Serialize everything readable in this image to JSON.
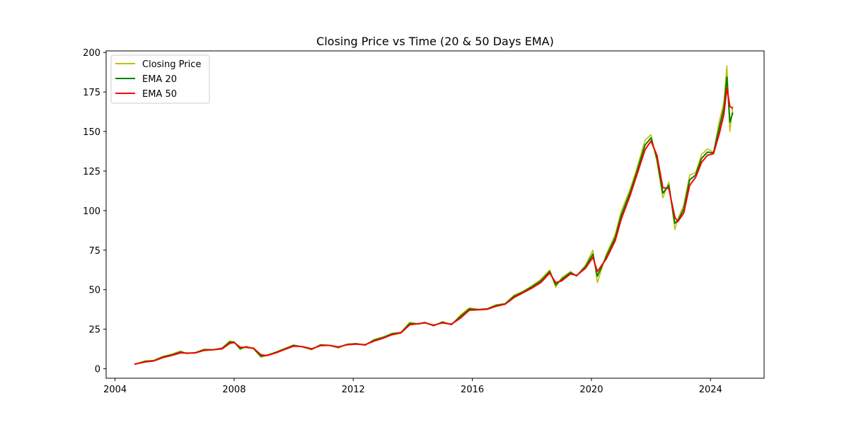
{
  "chart_data": {
    "type": "line",
    "title": "Closing Price vs Time (20 & 50 Days EMA)",
    "xlabel": "",
    "ylabel": "",
    "xlim": [
      2003.7,
      2025.8
    ],
    "ylim": [
      -6,
      201
    ],
    "x_ticks": [
      2004,
      2008,
      2012,
      2016,
      2020,
      2024
    ],
    "x_tick_labels": [
      "2004",
      "2008",
      "2012",
      "2016",
      "2020",
      "2024"
    ],
    "y_ticks": [
      0,
      25,
      50,
      75,
      100,
      125,
      150,
      175,
      200
    ],
    "y_tick_labels": [
      "0",
      "25",
      "50",
      "75",
      "100",
      "125",
      "150",
      "175",
      "200"
    ],
    "grid": false,
    "legend_position": "upper-left",
    "series": [
      {
        "name": "Closing Price",
        "color": "#bfbf00",
        "x": [
          2004.65,
          2005.0,
          2005.3,
          2005.6,
          2005.9,
          2006.2,
          2006.4,
          2006.7,
          2007.0,
          2007.3,
          2007.6,
          2007.85,
          2008.0,
          2008.2,
          2008.4,
          2008.65,
          2008.9,
          2009.1,
          2009.4,
          2009.7,
          2010.0,
          2010.3,
          2010.6,
          2010.9,
          2011.2,
          2011.5,
          2011.8,
          2012.1,
          2012.4,
          2012.7,
          2013.0,
          2013.3,
          2013.6,
          2013.9,
          2014.2,
          2014.4,
          2014.7,
          2015.0,
          2015.3,
          2015.6,
          2015.9,
          2016.2,
          2016.5,
          2016.8,
          2017.1,
          2017.4,
          2017.7,
          2018.0,
          2018.3,
          2018.6,
          2018.8,
          2019.0,
          2019.3,
          2019.5,
          2019.8,
          2020.05,
          2020.2,
          2020.5,
          2020.8,
          2021.0,
          2021.3,
          2021.5,
          2021.8,
          2022.0,
          2022.2,
          2022.4,
          2022.6,
          2022.8,
          2022.9,
          2023.1,
          2023.3,
          2023.5,
          2023.7,
          2023.9,
          2024.1,
          2024.3,
          2024.45,
          2024.55,
          2024.65,
          2024.75
        ],
        "y": [
          2.8,
          4.9,
          5.3,
          7.8,
          9.2,
          11.2,
          9.6,
          10.3,
          12.4,
          12.0,
          13.2,
          17.6,
          17.0,
          12.0,
          14.2,
          12.6,
          7.2,
          8.6,
          10.6,
          12.8,
          15.1,
          13.7,
          12.0,
          15.3,
          14.8,
          13.2,
          15.6,
          16.0,
          14.8,
          18.5,
          20.1,
          22.5,
          23.0,
          29.4,
          28.3,
          29.5,
          27.0,
          29.8,
          27.7,
          34.0,
          38.5,
          37.5,
          38.0,
          40.5,
          41.2,
          46.5,
          49.0,
          52.5,
          56.5,
          62.5,
          51.5,
          57.5,
          61.5,
          58.5,
          65.5,
          75.0,
          54.5,
          72.5,
          85.0,
          99.5,
          113.5,
          125.0,
          144.5,
          148.0,
          131.0,
          108.0,
          118.0,
          88.0,
          94.5,
          103.5,
          122.5,
          124.0,
          135.5,
          139.0,
          137.0,
          157.0,
          168.5,
          191.5,
          150.0,
          166.0
        ]
      },
      {
        "name": "EMA 20",
        "color": "#008000",
        "x": [
          2004.65,
          2005.0,
          2005.3,
          2005.6,
          2005.9,
          2006.2,
          2006.4,
          2006.7,
          2007.0,
          2007.3,
          2007.6,
          2007.85,
          2008.0,
          2008.2,
          2008.4,
          2008.65,
          2008.9,
          2009.1,
          2009.4,
          2009.7,
          2010.0,
          2010.3,
          2010.6,
          2010.9,
          2011.2,
          2011.5,
          2011.8,
          2012.1,
          2012.4,
          2012.7,
          2013.0,
          2013.3,
          2013.6,
          2013.9,
          2014.2,
          2014.4,
          2014.7,
          2015.0,
          2015.3,
          2015.6,
          2015.9,
          2016.2,
          2016.5,
          2016.8,
          2017.1,
          2017.4,
          2017.7,
          2018.0,
          2018.3,
          2018.6,
          2018.8,
          2019.0,
          2019.3,
          2019.5,
          2019.8,
          2020.05,
          2020.2,
          2020.5,
          2020.8,
          2021.0,
          2021.3,
          2021.5,
          2021.8,
          2022.0,
          2022.2,
          2022.4,
          2022.6,
          2022.8,
          2022.9,
          2023.1,
          2023.3,
          2023.5,
          2023.7,
          2023.9,
          2024.1,
          2024.3,
          2024.45,
          2024.55,
          2024.65,
          2024.75
        ],
        "y": [
          2.8,
          4.6,
          5.1,
          7.4,
          8.8,
          10.6,
          9.8,
          10.1,
          12.0,
          12.0,
          12.9,
          16.8,
          16.8,
          12.8,
          13.8,
          12.8,
          8.0,
          8.4,
          10.3,
          12.5,
          14.7,
          13.9,
          12.3,
          15.0,
          14.8,
          13.5,
          15.4,
          15.8,
          15.0,
          18.0,
          19.7,
          22.0,
          22.8,
          28.6,
          28.4,
          29.2,
          27.3,
          29.4,
          28.0,
          33.0,
          37.8,
          37.4,
          37.8,
          40.0,
          41.0,
          45.8,
          48.5,
          51.8,
          55.5,
          61.5,
          53.0,
          56.5,
          60.8,
          58.8,
          64.5,
          72.5,
          58.5,
          71.0,
          83.0,
          97.0,
          111.5,
          123.0,
          141.5,
          146.0,
          133.0,
          111.0,
          116.0,
          92.0,
          93.5,
          101.0,
          119.5,
          122.5,
          133.0,
          137.0,
          136.5,
          153.0,
          165.0,
          184.5,
          156.0,
          162.0
        ]
      },
      {
        "name": "EMA 50",
        "color": "#ff0000",
        "x": [
          2004.65,
          2005.0,
          2005.3,
          2005.6,
          2005.9,
          2006.2,
          2006.4,
          2006.7,
          2007.0,
          2007.3,
          2007.6,
          2007.85,
          2008.0,
          2008.2,
          2008.4,
          2008.65,
          2008.9,
          2009.1,
          2009.4,
          2009.7,
          2010.0,
          2010.3,
          2010.6,
          2010.9,
          2011.2,
          2011.5,
          2011.8,
          2012.1,
          2012.4,
          2012.7,
          2013.0,
          2013.3,
          2013.6,
          2013.9,
          2014.2,
          2014.4,
          2014.7,
          2015.0,
          2015.3,
          2015.6,
          2015.9,
          2016.2,
          2016.5,
          2016.8,
          2017.1,
          2017.4,
          2017.7,
          2018.0,
          2018.3,
          2018.6,
          2018.8,
          2019.0,
          2019.3,
          2019.5,
          2019.8,
          2020.05,
          2020.2,
          2020.5,
          2020.8,
          2021.0,
          2021.3,
          2021.5,
          2021.8,
          2022.0,
          2022.2,
          2022.4,
          2022.6,
          2022.8,
          2022.9,
          2023.1,
          2023.3,
          2023.5,
          2023.7,
          2023.9,
          2024.1,
          2024.3,
          2024.45,
          2024.55,
          2024.65,
          2024.75
        ],
        "y": [
          2.8,
          4.3,
          4.9,
          7.0,
          8.4,
          10.0,
          9.9,
          10.0,
          11.6,
          12.0,
          12.6,
          16.0,
          16.6,
          13.6,
          13.5,
          13.0,
          8.8,
          8.3,
          10.0,
          12.2,
          14.3,
          14.0,
          12.6,
          14.6,
          14.8,
          13.8,
          15.2,
          15.6,
          15.2,
          17.5,
          19.3,
          21.5,
          22.6,
          27.8,
          28.5,
          29.0,
          27.6,
          29.0,
          28.2,
          32.0,
          37.0,
          37.3,
          37.6,
          39.5,
          40.8,
          45.0,
          48.0,
          51.0,
          54.5,
          60.5,
          54.5,
          55.5,
          60.0,
          59.0,
          63.5,
          70.5,
          61.5,
          69.5,
          81.0,
          94.5,
          109.5,
          121.0,
          138.5,
          144.0,
          135.0,
          114.5,
          114.0,
          96.0,
          93.0,
          98.5,
          116.0,
          121.0,
          130.5,
          135.0,
          136.0,
          149.0,
          161.0,
          177.5,
          166.0,
          164.5
        ]
      }
    ]
  }
}
